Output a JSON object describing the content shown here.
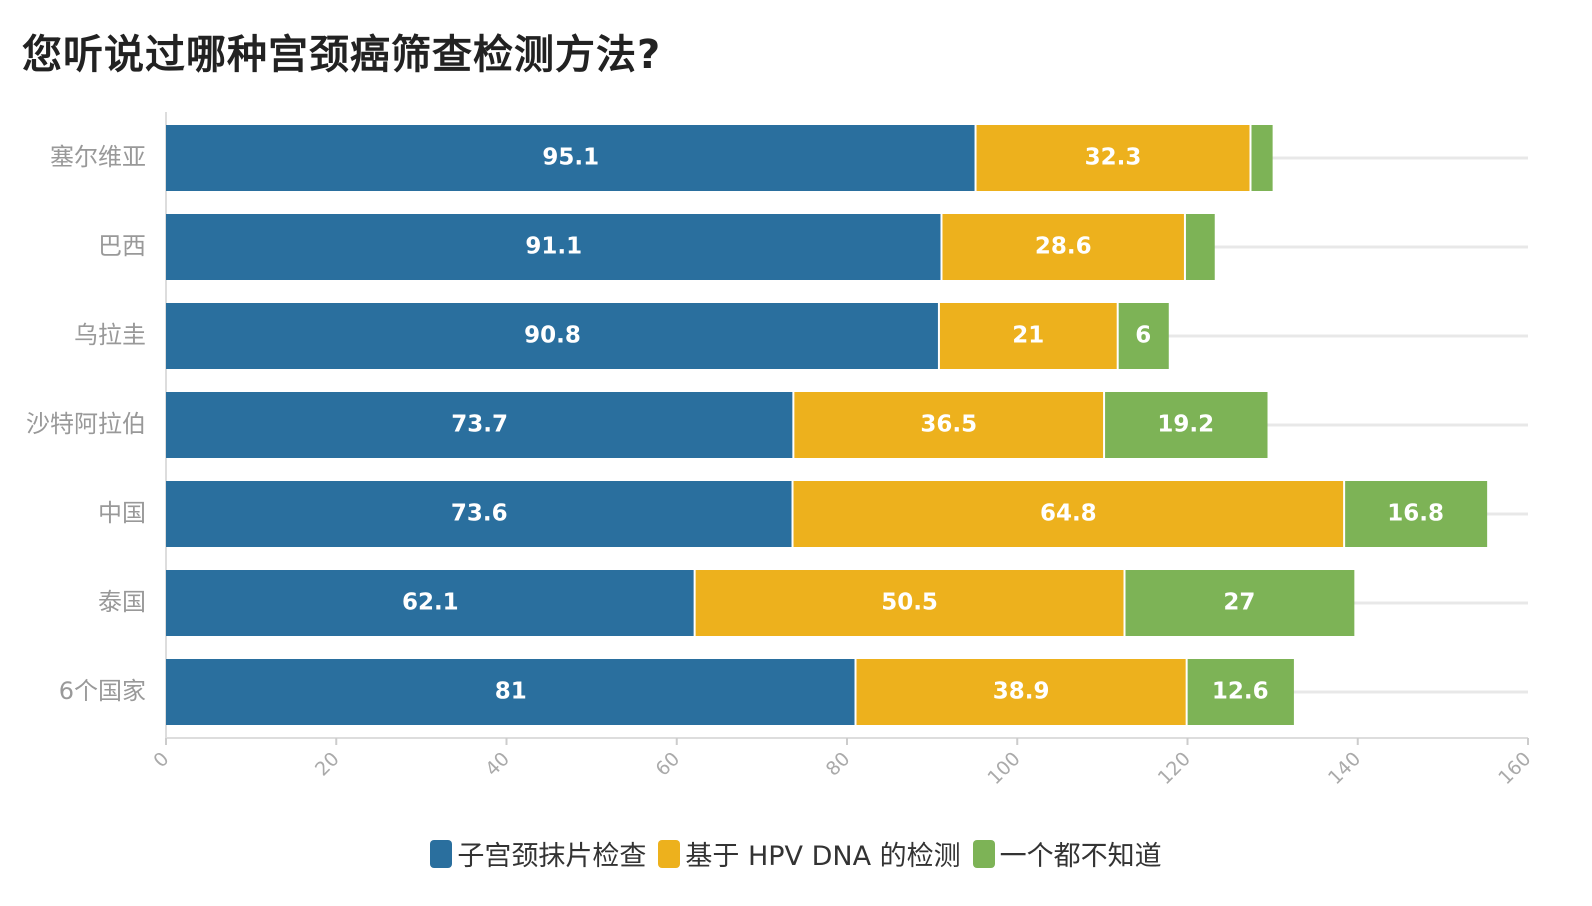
{
  "title": "您听说过哪种宫颈癌筛查检测方法?",
  "colors": {
    "series0": "#2a6f9e",
    "series1": "#edb11d",
    "series2": "#7db356"
  },
  "chart_data": {
    "type": "bar",
    "orientation": "horizontal",
    "stacked": true,
    "categories": [
      "塞尔维亚",
      "巴西",
      "乌拉圭",
      "沙特阿拉伯",
      "中国",
      "泰国",
      "6个国家"
    ],
    "series": [
      {
        "name": "子宫颈抹片检查",
        "values": [
          95.1,
          91.1,
          90.8,
          73.7,
          73.6,
          62.1,
          81
        ]
      },
      {
        "name": "基于 HPV DNA 的检测",
        "values": [
          32.3,
          28.6,
          21,
          36.5,
          64.8,
          50.5,
          38.9
        ]
      },
      {
        "name": "一个都不知道",
        "values": [
          2.6,
          3.5,
          6,
          19.2,
          16.8,
          27,
          12.6
        ]
      }
    ],
    "data_labels": [
      [
        "95.1",
        "91.1",
        "90.8",
        "73.7",
        "73.6",
        "62.1",
        "81"
      ],
      [
        "32.3",
        "28.6",
        "21",
        "36.5",
        "64.8",
        "50.5",
        "38.9"
      ],
      [
        "",
        "",
        "6",
        "19.2",
        "16.8",
        "27",
        "12.6"
      ]
    ],
    "xlim": [
      0,
      160
    ],
    "x_ticks": [
      "0",
      "20",
      "40",
      "60",
      "80",
      "100",
      "120",
      "140",
      "160"
    ],
    "grid": true,
    "legend_position": "bottom"
  }
}
